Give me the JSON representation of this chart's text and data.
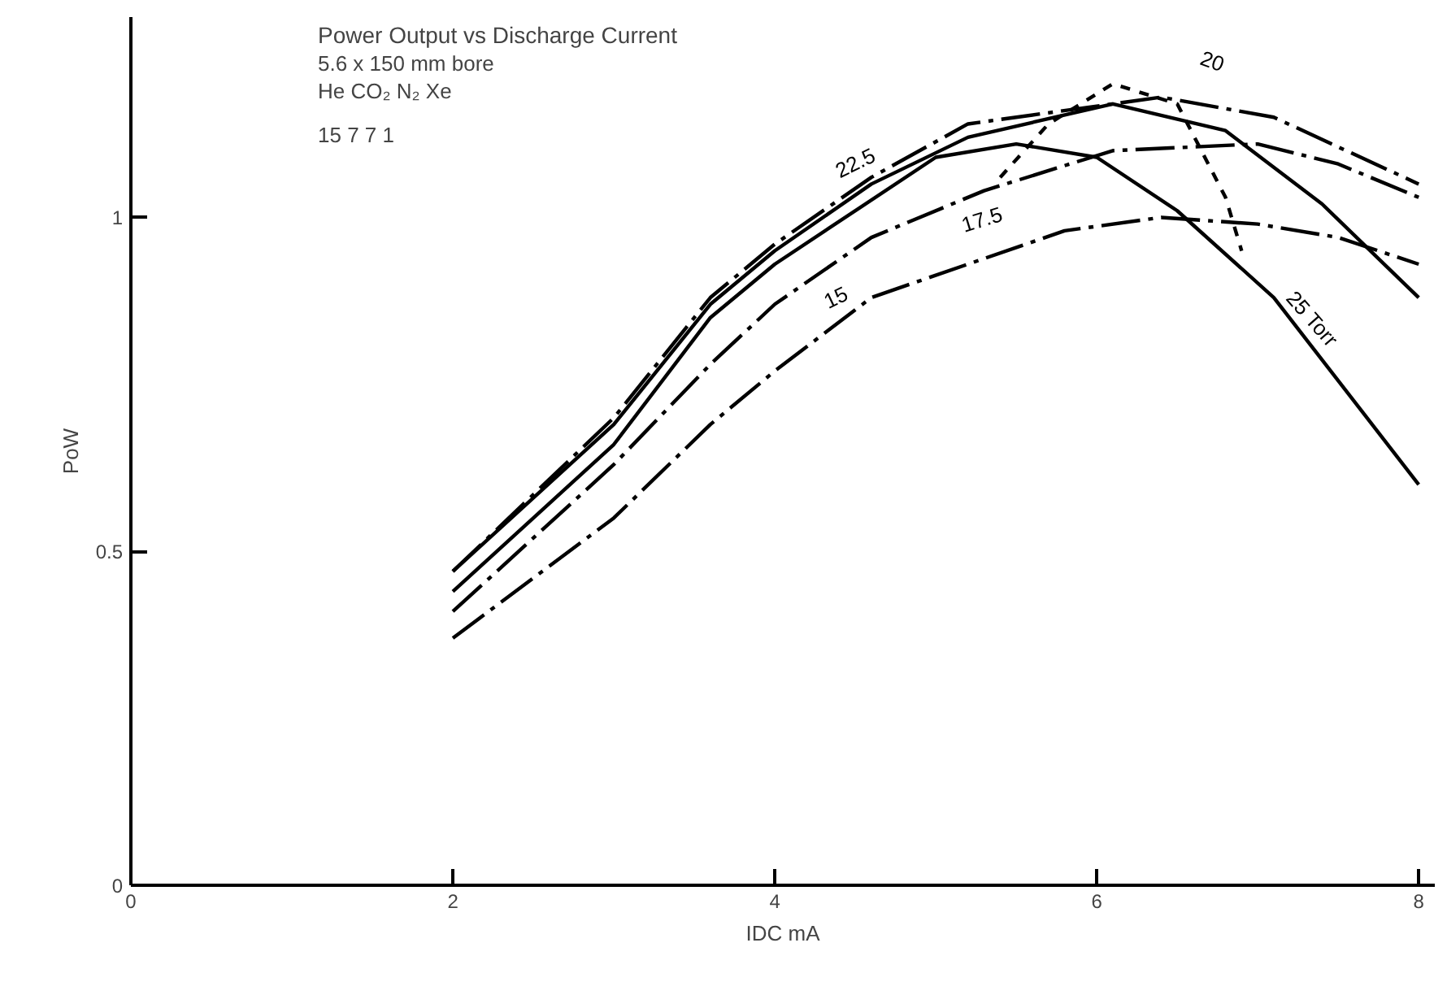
{
  "chart_data": {
    "type": "line",
    "title": "Power Output vs Discharge Current",
    "subtitle": "5.6 x 150 mm bore",
    "xlabel": "IDC mA",
    "ylabel": "PoW",
    "xlim": [
      0,
      8.1
    ],
    "ylim": [
      0,
      1.3
    ],
    "xticks": [
      0,
      2,
      4,
      6,
      8
    ],
    "yticks": [
      0,
      0.5,
      1
    ],
    "grid": false,
    "marker": "none",
    "series": [
      {
        "name": "15",
        "color": "#000000",
        "line_style": "dashdot",
        "x": [
          2,
          3,
          3.6,
          4,
          4.6,
          5.2,
          5.8,
          6.4,
          7,
          7.5,
          8
        ],
        "values": [
          0.37,
          0.55,
          0.69,
          0.77,
          0.88,
          0.93,
          0.98,
          1.0,
          0.99,
          0.97,
          0.93
        ]
      },
      {
        "name": "17.5",
        "color": "#000000",
        "line_style": "dashdot",
        "x": [
          2,
          3,
          3.6,
          4,
          4.6,
          5.3,
          6.1,
          7,
          7.5,
          8
        ],
        "values": [
          0.41,
          0.63,
          0.78,
          0.87,
          0.97,
          1.04,
          1.1,
          1.11,
          1.08,
          1.03
        ]
      },
      {
        "name": "20",
        "color": "#000000",
        "line_style": "dashdot",
        "x": [
          2,
          3,
          3.6,
          4,
          4.6,
          5.2,
          6.4,
          7.1,
          8
        ],
        "values": [
          0.47,
          0.7,
          0.88,
          0.96,
          1.06,
          1.14,
          1.18,
          1.15,
          1.05
        ]
      },
      {
        "name": "22.5",
        "color": "#000000",
        "line_style": "solid",
        "x": [
          2,
          3,
          3.6,
          4,
          4.6,
          5.2,
          6.1,
          6.8,
          7.4,
          8
        ],
        "values": [
          0.47,
          0.69,
          0.87,
          0.95,
          1.05,
          1.12,
          1.17,
          1.13,
          1.02,
          0.88
        ]
      },
      {
        "name": "25 Torr",
        "color": "#000000",
        "line_style": "solid",
        "x": [
          2,
          3,
          3.6,
          4,
          5,
          5.5,
          6,
          6.5,
          7.1,
          8
        ],
        "values": [
          0.44,
          0.66,
          0.85,
          0.93,
          1.09,
          1.11,
          1.09,
          1.01,
          0.88,
          0.6
        ]
      },
      {
        "color": "#000000",
        "line_style": "dashed",
        "x": [
          5.4,
          5.7,
          6.1,
          6.5,
          6.8,
          6.9
        ],
        "values": [
          1.06,
          1.14,
          1.2,
          1.17,
          1.03,
          0.95
        ]
      }
    ],
    "annotations": [
      "He CO₂ N₂ Xe",
      "15 7 7 1"
    ]
  }
}
